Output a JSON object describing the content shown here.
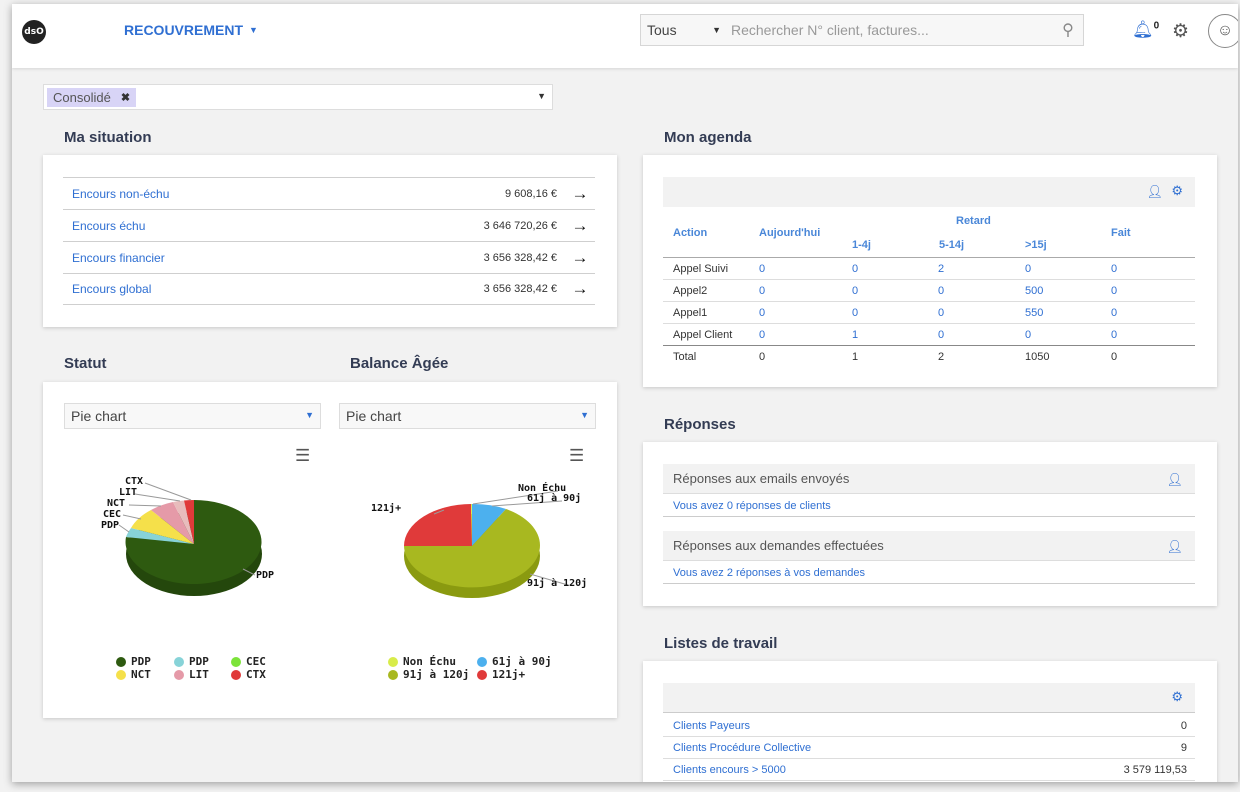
{
  "header": {
    "logo_text": "dsO",
    "app_menu_label": "RECOUVREMENT",
    "search_scope": "Tous",
    "search_placeholder": "Rechercher N° client, factures...",
    "notification_count": "0"
  },
  "filter": {
    "chip_label": "Consolidé"
  },
  "situation": {
    "title": "Ma situation",
    "rows": [
      {
        "label": "Encours non-échu",
        "value": "9 608,16 €"
      },
      {
        "label": "Encours échu",
        "value": "3 646 720,26 €"
      },
      {
        "label": "Encours financier",
        "value": "3 656 328,42 €"
      },
      {
        "label": "Encours global",
        "value": "3 656 328,42 €"
      }
    ]
  },
  "statut": {
    "title": "Statut",
    "select_value": "Pie chart",
    "pie_labels": [
      "CTX",
      "LIT",
      "NCT",
      "CEC",
      "PDP",
      "PDP"
    ],
    "legend": [
      {
        "label": "PDP",
        "color": "#2e5a10"
      },
      {
        "label": "PDP",
        "color": "#87d3d8"
      },
      {
        "label": "CEC",
        "color": "#7ce33a"
      },
      {
        "label": "NCT",
        "color": "#f5e04a"
      },
      {
        "label": "LIT",
        "color": "#e59aa8"
      },
      {
        "label": "CTX",
        "color": "#e03a3a"
      }
    ]
  },
  "balance": {
    "title": "Balance Âgée",
    "select_value": "Pie chart",
    "pie_labels": [
      "Non Échu",
      "61j à 90j",
      "121j+",
      "91j à 120j"
    ],
    "legend": [
      {
        "label": "Non Échu",
        "color": "#d8ec4a"
      },
      {
        "label": "61j à 90j",
        "color": "#4cb0ee"
      },
      {
        "label": "91j à 120j",
        "color": "#a8b820"
      },
      {
        "label": "121j+",
        "color": "#e03a3a"
      }
    ]
  },
  "agenda": {
    "title": "Mon agenda",
    "headers": {
      "action": "Action",
      "today": "Aujourd'hui",
      "retard": "Retard",
      "r1": "1-4j",
      "r2": "5-14j",
      "r3": ">15j",
      "done": "Fait"
    },
    "rows": [
      {
        "action": "Appel Suivi",
        "today": "0",
        "r1": "0",
        "r2": "2",
        "r3": "0",
        "done": "0"
      },
      {
        "action": "Appel2",
        "today": "0",
        "r1": "0",
        "r2": "0",
        "r3": "500",
        "done": "0"
      },
      {
        "action": "Appel1",
        "today": "0",
        "r1": "0",
        "r2": "0",
        "r3": "550",
        "done": "0"
      },
      {
        "action": "Appel Client",
        "today": "0",
        "r1": "1",
        "r2": "0",
        "r3": "0",
        "done": "0"
      }
    ],
    "total": {
      "action": "Total",
      "today": "0",
      "r1": "1",
      "r2": "2",
      "r3": "1050",
      "done": "0"
    }
  },
  "responses": {
    "title": "Réponses",
    "items": [
      {
        "heading": "Réponses aux emails envoyés",
        "detail": "Vous avez 0 réponses de clients"
      },
      {
        "heading": "Réponses aux demandes effectuées",
        "detail": "Vous avez 2 réponses à vos demandes"
      }
    ]
  },
  "worklists": {
    "title": "Listes de travail",
    "rows": [
      {
        "label": "Clients Payeurs",
        "value": "0"
      },
      {
        "label": "Clients Procédure Collective",
        "value": "9"
      },
      {
        "label": "Clients encours > 5000",
        "value": "3 579 119,53"
      }
    ]
  }
}
